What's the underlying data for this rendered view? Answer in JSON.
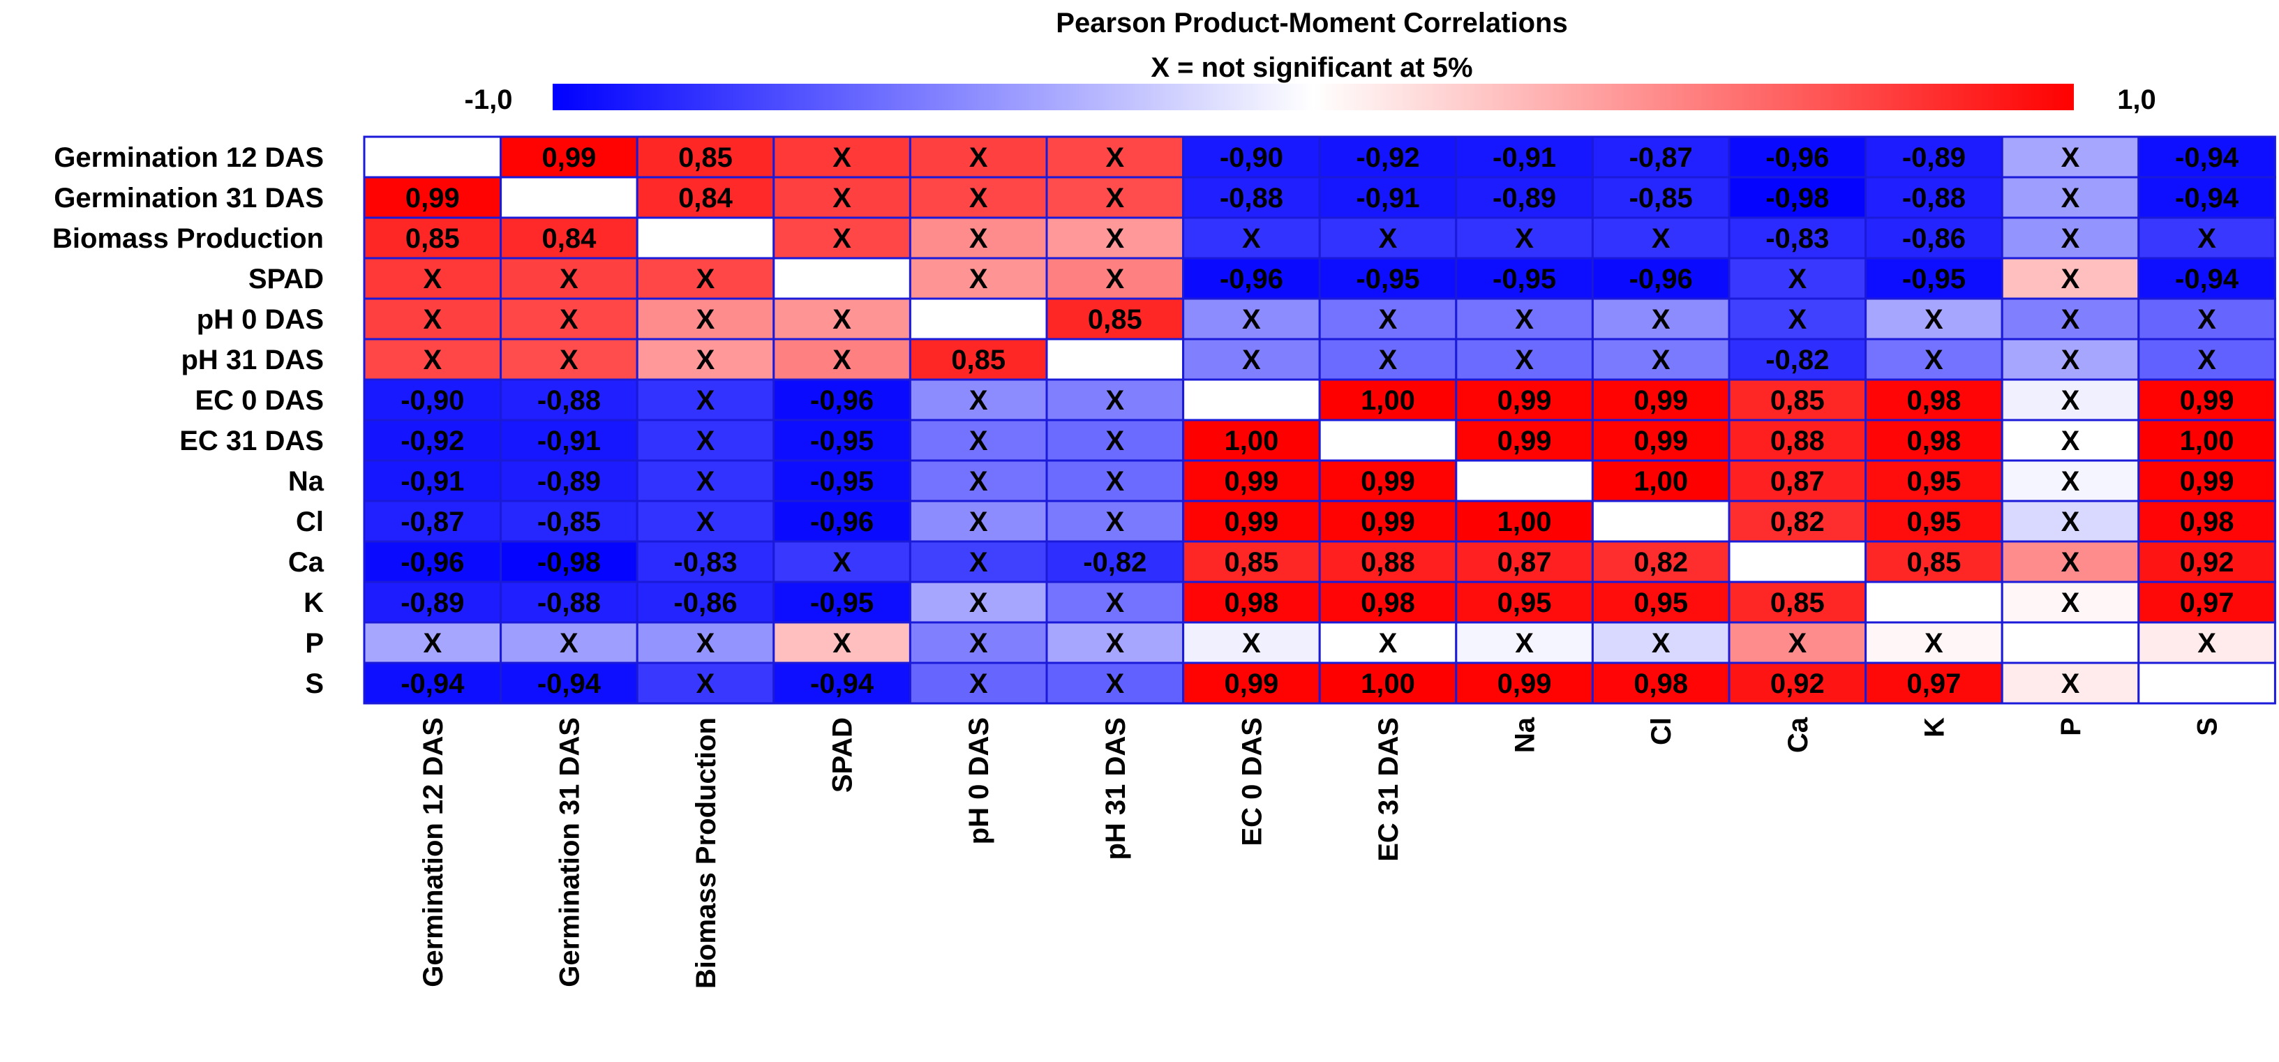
{
  "chart_data": {
    "type": "heatmap",
    "title": "Pearson Product-Moment Correlations",
    "subtitle": "X = not significant at 5%",
    "colorbar": {
      "min_label": "-1,0",
      "max_label": "1,0",
      "range": [
        -1,
        1
      ],
      "low_color": "#0000ff",
      "mid_color": "#ffffff",
      "high_color": "#ff0000"
    },
    "border_color": "#1a1ad8",
    "rows": [
      "Germination 12 DAS",
      "Germination 31 DAS",
      "Biomass Production",
      "SPAD",
      "pH 0 DAS",
      "pH 31 DAS",
      "EC 0 DAS",
      "EC 31 DAS",
      "Na",
      "Cl",
      "Ca",
      "K",
      "P",
      "S"
    ],
    "columns": [
      "Germination 12 DAS",
      "Germination 31 DAS",
      "Biomass Production",
      "SPAD",
      "pH 0 DAS",
      "pH 31 DAS",
      "EC 0 DAS",
      "EC 31 DAS",
      "Na",
      "Cl",
      "Ca",
      "K",
      "P",
      "S"
    ],
    "values": [
      [
        null,
        0.99,
        0.85,
        0.78,
        0.75,
        0.72,
        -0.9,
        -0.92,
        -0.91,
        -0.87,
        -0.96,
        -0.89,
        -0.35,
        -0.94
      ],
      [
        0.99,
        null,
        0.84,
        0.75,
        0.72,
        0.7,
        -0.88,
        -0.91,
        -0.89,
        -0.85,
        -0.98,
        -0.88,
        -0.38,
        -0.94
      ],
      [
        0.85,
        0.84,
        null,
        0.72,
        0.45,
        0.4,
        -0.8,
        -0.8,
        -0.8,
        -0.8,
        -0.83,
        -0.86,
        -0.42,
        -0.78
      ],
      [
        0.78,
        0.75,
        0.72,
        null,
        0.42,
        0.5,
        -0.96,
        -0.95,
        -0.95,
        -0.96,
        -0.78,
        -0.95,
        0.25,
        -0.94
      ],
      [
        0.75,
        0.72,
        0.45,
        0.42,
        null,
        0.85,
        -0.45,
        -0.55,
        -0.55,
        -0.45,
        -0.75,
        -0.35,
        -0.5,
        -0.6
      ],
      [
        0.72,
        0.7,
        0.4,
        0.5,
        0.85,
        null,
        -0.5,
        -0.58,
        -0.58,
        -0.52,
        -0.82,
        -0.55,
        -0.35,
        -0.62
      ],
      [
        -0.9,
        -0.88,
        -0.8,
        -0.96,
        -0.45,
        -0.5,
        null,
        1.0,
        0.99,
        0.99,
        0.85,
        0.98,
        -0.06,
        0.99
      ],
      [
        -0.92,
        -0.91,
        -0.8,
        -0.95,
        -0.55,
        -0.58,
        1.0,
        null,
        0.99,
        0.99,
        0.88,
        0.98,
        0.0,
        1.0
      ],
      [
        -0.91,
        -0.89,
        -0.8,
        -0.95,
        -0.55,
        -0.58,
        0.99,
        0.99,
        null,
        1.0,
        0.87,
        0.95,
        -0.04,
        0.99
      ],
      [
        -0.87,
        -0.85,
        -0.8,
        -0.96,
        -0.45,
        -0.52,
        0.99,
        0.99,
        1.0,
        null,
        0.82,
        0.95,
        -0.15,
        0.98
      ],
      [
        -0.96,
        -0.98,
        -0.83,
        -0.78,
        -0.75,
        -0.82,
        0.85,
        0.88,
        0.87,
        0.82,
        null,
        0.85,
        0.45,
        0.92
      ],
      [
        -0.89,
        -0.88,
        -0.86,
        -0.95,
        -0.35,
        -0.55,
        0.98,
        0.98,
        0.95,
        0.95,
        0.85,
        null,
        0.03,
        0.97
      ],
      [
        -0.35,
        -0.38,
        -0.42,
        0.25,
        -0.5,
        -0.35,
        -0.06,
        0.0,
        -0.04,
        -0.15,
        0.45,
        0.03,
        null,
        0.08
      ],
      [
        -0.94,
        -0.94,
        -0.78,
        -0.94,
        -0.6,
        -0.62,
        0.99,
        1.0,
        0.99,
        0.98,
        0.92,
        0.97,
        0.08,
        null
      ]
    ],
    "cell_labels": [
      [
        "",
        "0,99",
        "0,85",
        "X",
        "X",
        "X",
        "-0,90",
        "-0,92",
        "-0,91",
        "-0,87",
        "-0,96",
        "-0,89",
        "X",
        "-0,94"
      ],
      [
        "0,99",
        "",
        "0,84",
        "X",
        "X",
        "X",
        "-0,88",
        "-0,91",
        "-0,89",
        "-0,85",
        "-0,98",
        "-0,88",
        "X",
        "-0,94"
      ],
      [
        "0,85",
        "0,84",
        "",
        "X",
        "X",
        "X",
        "X",
        "X",
        "X",
        "X",
        "-0,83",
        "-0,86",
        "X",
        "X"
      ],
      [
        "X",
        "X",
        "X",
        "",
        "X",
        "X",
        "-0,96",
        "-0,95",
        "-0,95",
        "-0,96",
        "X",
        "-0,95",
        "X",
        "-0,94"
      ],
      [
        "X",
        "X",
        "X",
        "X",
        "",
        "0,85",
        "X",
        "X",
        "X",
        "X",
        "X",
        "X",
        "X",
        "X"
      ],
      [
        "X",
        "X",
        "X",
        "X",
        "0,85",
        "",
        "X",
        "X",
        "X",
        "X",
        "-0,82",
        "X",
        "X",
        "X"
      ],
      [
        "-0,90",
        "-0,88",
        "X",
        "-0,96",
        "X",
        "X",
        "",
        "1,00",
        "0,99",
        "0,99",
        "0,85",
        "0,98",
        "X",
        "0,99"
      ],
      [
        "-0,92",
        "-0,91",
        "X",
        "-0,95",
        "X",
        "X",
        "1,00",
        "",
        "0,99",
        "0,99",
        "0,88",
        "0,98",
        "X",
        "1,00"
      ],
      [
        "-0,91",
        "-0,89",
        "X",
        "-0,95",
        "X",
        "X",
        "0,99",
        "0,99",
        "",
        "1,00",
        "0,87",
        "0,95",
        "X",
        "0,99"
      ],
      [
        "-0,87",
        "-0,85",
        "X",
        "-0,96",
        "X",
        "X",
        "0,99",
        "0,99",
        "1,00",
        "",
        "0,82",
        "0,95",
        "X",
        "0,98"
      ],
      [
        "-0,96",
        "-0,98",
        "-0,83",
        "X",
        "X",
        "-0,82",
        "0,85",
        "0,88",
        "0,87",
        "0,82",
        "",
        "0,85",
        "X",
        "0,92"
      ],
      [
        "-0,89",
        "-0,88",
        "-0,86",
        "-0,95",
        "X",
        "X",
        "0,98",
        "0,98",
        "0,95",
        "0,95",
        "0,85",
        "",
        "X",
        "0,97"
      ],
      [
        "X",
        "X",
        "X",
        "X",
        "X",
        "X",
        "X",
        "X",
        "X",
        "X",
        "X",
        "X",
        "",
        "X"
      ],
      [
        "-0,94",
        "-0,94",
        "X",
        "-0,94",
        "X",
        "X",
        "0,99",
        "1,00",
        "0,99",
        "0,98",
        "0,92",
        "0,97",
        "X",
        ""
      ]
    ]
  }
}
